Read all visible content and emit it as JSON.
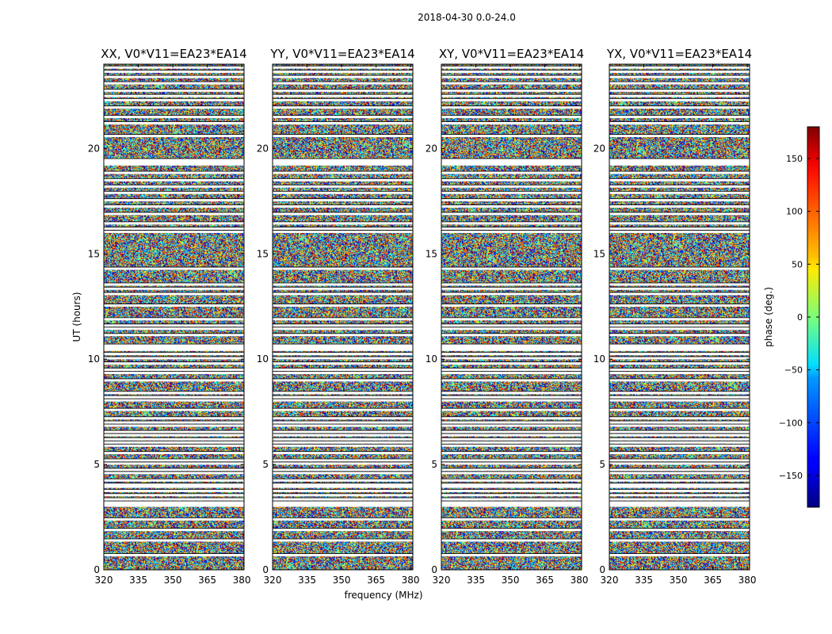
{
  "chart_data": {
    "type": "heatmap",
    "title": "2018-04-30 0.0-24.0",
    "xlabel": "frequency (MHz)",
    "ylabel": "UT (hours)",
    "xlim": [
      320,
      381
    ],
    "ylim": [
      0,
      24
    ],
    "xticks": [
      320,
      335,
      350,
      365,
      380
    ],
    "yticks": [
      0,
      5,
      10,
      15,
      20
    ],
    "panels": [
      {
        "title": "XX, V0*V11=EA23*EA14",
        "polarization": "XX"
      },
      {
        "title": "YY, V0*V11=EA23*EA14",
        "polarization": "YY"
      },
      {
        "title": "XY, V0*V11=EA23*EA14",
        "polarization": "XY"
      },
      {
        "title": "YX, V0*V11=EA23*EA14",
        "polarization": "YX"
      }
    ],
    "colorbar": {
      "label": "phase (deg.)",
      "range": [
        -180,
        180
      ],
      "ticks": [
        150,
        100,
        50,
        0,
        -50,
        -100,
        -150
      ],
      "tick_labels": [
        "150",
        "100",
        "50",
        "0",
        "−50",
        "−100",
        "−150"
      ],
      "colormap": "jet"
    },
    "flagged_ut_hours": [
      0.7,
      1.4,
      1.9,
      2.4,
      3.05,
      3.1,
      3.2,
      3.35,
      3.55,
      3.75,
      3.95,
      4.05,
      4.25,
      4.6,
      4.75,
      5.05,
      5.2,
      5.55,
      5.9,
      6.05,
      6.2,
      6.4,
      6.55,
      6.85,
      7.0,
      7.2,
      7.6,
      8.05,
      8.2,
      8.4,
      9.0,
      9.35,
      9.5,
      9.8,
      10.05,
      10.25,
      10.45,
      10.55,
      10.65,
      11.15,
      11.45,
      11.6,
      11.9,
      12.55,
      13.1,
      13.35,
      13.55,
      14.3,
      16.05,
      16.2,
      16.45,
      16.9,
      17.25,
      17.55,
      17.9,
      18.2,
      18.5,
      18.85,
      19.25,
      19.35,
      19.45,
      20.6,
      21.2,
      21.5,
      21.95,
      22.3,
      22.5,
      22.75,
      23.1,
      23.4,
      23.65,
      23.85
    ]
  }
}
